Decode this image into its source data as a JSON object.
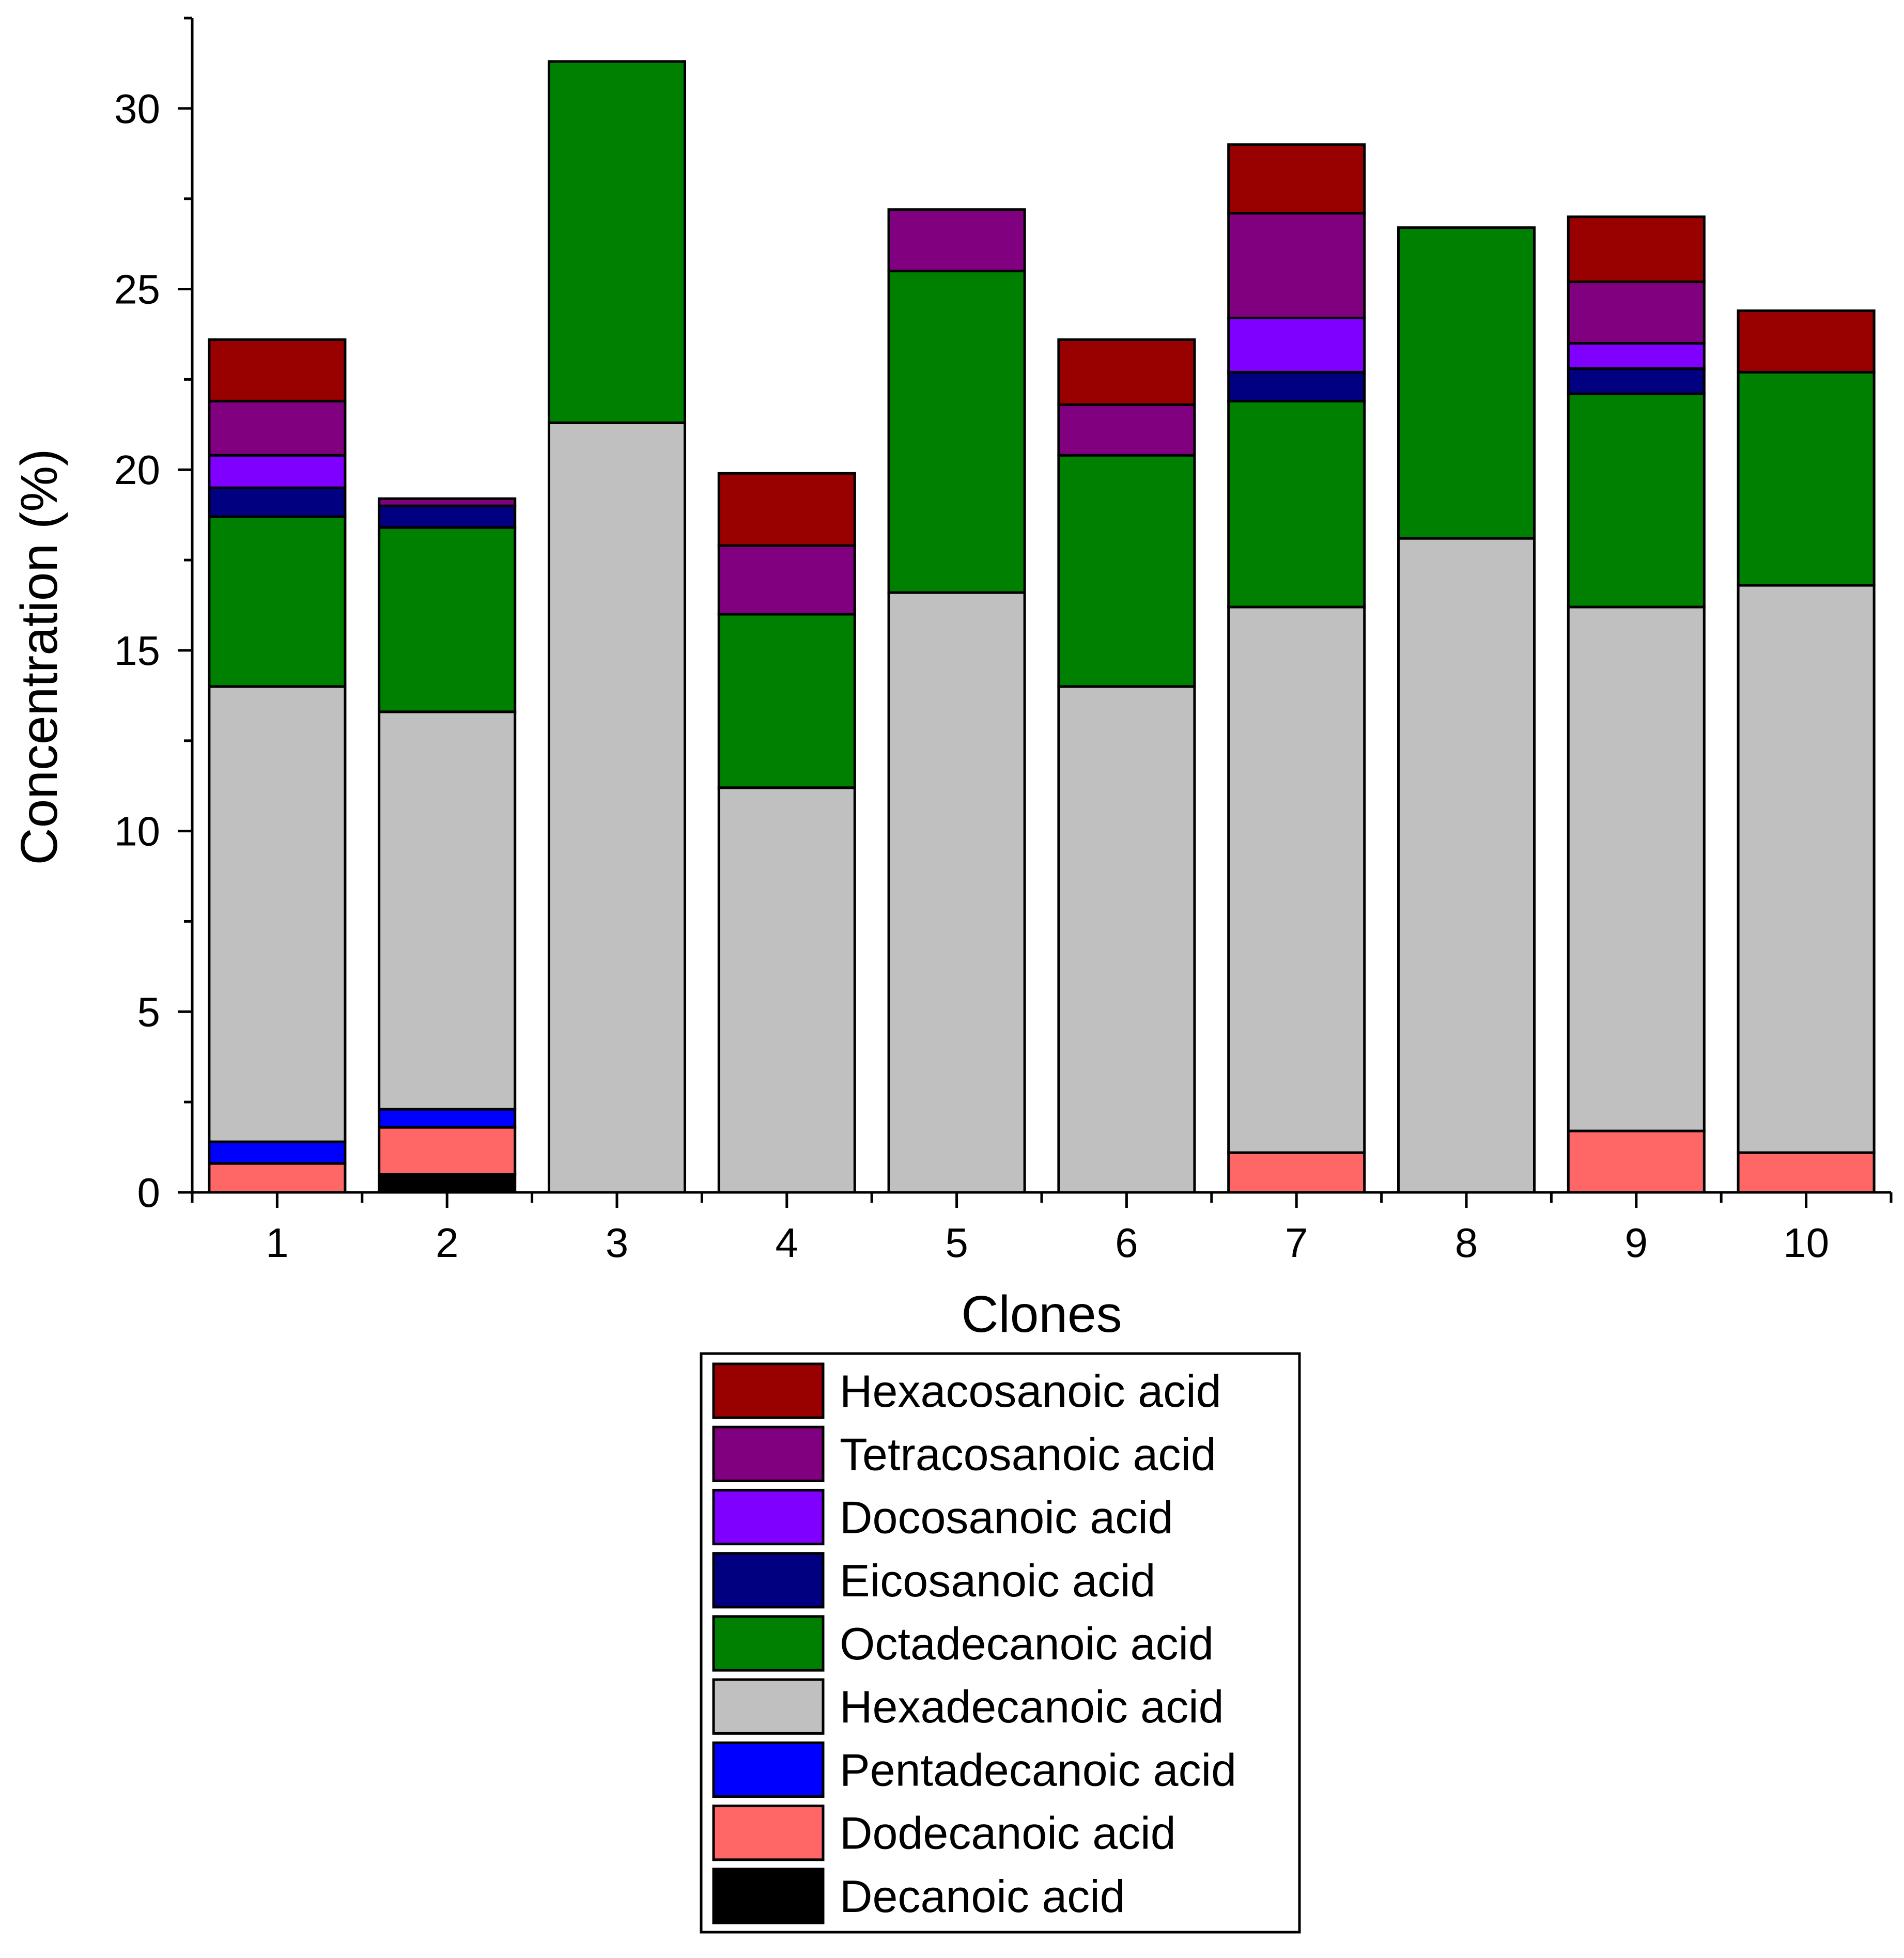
{
  "chart_data": {
    "type": "bar",
    "stacked": true,
    "xlabel": "Clones",
    "ylabel": "Concentration (%)",
    "ylim": [
      0,
      32.5
    ],
    "yticks": [
      0,
      5,
      10,
      15,
      20,
      25,
      30
    ],
    "categories": [
      "1",
      "2",
      "3",
      "4",
      "5",
      "6",
      "7",
      "8",
      "9",
      "10"
    ],
    "series": [
      {
        "name": "Decanoic acid",
        "color": "#000000",
        "values": [
          0,
          0.5,
          0,
          0,
          0,
          0,
          0,
          0,
          0,
          0
        ]
      },
      {
        "name": "Dodecanoic acid",
        "color": "#ff6666",
        "values": [
          0.8,
          1.3,
          0,
          0,
          0,
          0,
          1.1,
          0,
          1.7,
          1.1
        ]
      },
      {
        "name": "Pentadecanoic acid",
        "color": "#0000ff",
        "values": [
          0.6,
          0.5,
          0,
          0,
          0,
          0,
          0,
          0,
          0,
          0
        ]
      },
      {
        "name": "Hexadecanoic acid",
        "color": "#c0c0c0",
        "values": [
          12.6,
          11.0,
          21.3,
          11.2,
          16.6,
          14.0,
          15.1,
          18.1,
          14.5,
          15.7
        ]
      },
      {
        "name": "Octadecanoic acid",
        "color": "#008000",
        "values": [
          4.7,
          5.1,
          10.0,
          4.8,
          8.9,
          6.4,
          5.7,
          8.6,
          5.9,
          5.9
        ]
      },
      {
        "name": "Eicosanoic acid",
        "color": "#000080",
        "values": [
          0.8,
          0.6,
          0,
          0,
          0,
          0,
          0.8,
          0,
          0.7,
          0
        ]
      },
      {
        "name": "Docosanoic acid",
        "color": "#8000ff",
        "values": [
          0.9,
          0,
          0,
          0,
          0,
          0,
          1.5,
          0,
          0.7,
          0
        ]
      },
      {
        "name": "Tetracosanoic acid",
        "color": "#800080",
        "values": [
          1.5,
          0.2,
          0,
          1.9,
          1.7,
          1.4,
          2.9,
          0,
          1.7,
          0
        ]
      },
      {
        "name": "Hexacosanoic acid",
        "color": "#990000",
        "values": [
          1.7,
          0,
          0,
          2.0,
          0,
          1.8,
          1.9,
          0,
          1.8,
          1.7
        ]
      }
    ],
    "legend": {
      "placement": "bottom-center",
      "order": "reverse"
    }
  }
}
